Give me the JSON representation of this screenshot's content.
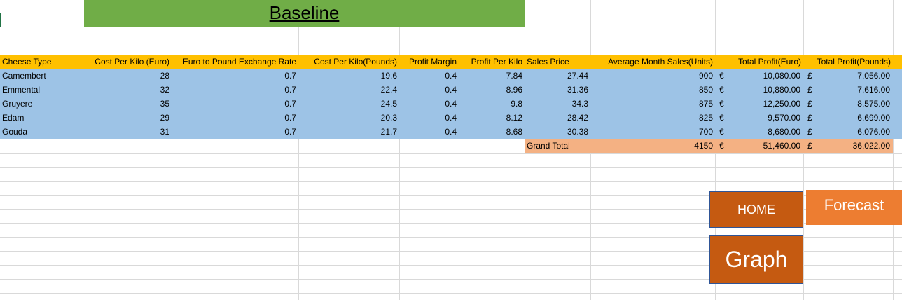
{
  "title": "Baseline",
  "headers": [
    "Cheese Type",
    "Cost Per Kilo (Euro)",
    "Euro to Pound Exchange Rate",
    "Cost Per Kilo(Pounds)",
    "Profit Margin",
    "Profit Per Kilo",
    "Sales Price",
    "Average Month Sales(Units)",
    "Total Profit(Euro)",
    "Total Profit(Pounds)"
  ],
  "rows": [
    {
      "cheese": "Camembert",
      "cost_euro": "28",
      "rate": "0.7",
      "cost_pounds": "19.6",
      "margin": "0.4",
      "profit_per_kilo": "7.84",
      "sales_price": "27.44",
      "avg_sales": "900",
      "euro_symbol": "€",
      "total_euro": "10,080.00",
      "pound_symbol": "£",
      "total_pounds": "7,056.00"
    },
    {
      "cheese": "Emmental",
      "cost_euro": "32",
      "rate": "0.7",
      "cost_pounds": "22.4",
      "margin": "0.4",
      "profit_per_kilo": "8.96",
      "sales_price": "31.36",
      "avg_sales": "850",
      "euro_symbol": "€",
      "total_euro": "10,880.00",
      "pound_symbol": "£",
      "total_pounds": "7,616.00"
    },
    {
      "cheese": "Gruyere",
      "cost_euro": "35",
      "rate": "0.7",
      "cost_pounds": "24.5",
      "margin": "0.4",
      "profit_per_kilo": "9.8",
      "sales_price": "34.3",
      "avg_sales": "875",
      "euro_symbol": "€",
      "total_euro": "12,250.00",
      "pound_symbol": "£",
      "total_pounds": "8,575.00"
    },
    {
      "cheese": "Edam",
      "cost_euro": "29",
      "rate": "0.7",
      "cost_pounds": "20.3",
      "margin": "0.4",
      "profit_per_kilo": "8.12",
      "sales_price": "28.42",
      "avg_sales": "825",
      "euro_symbol": "€",
      "total_euro": "9,570.00",
      "pound_symbol": "£",
      "total_pounds": "6,699.00"
    },
    {
      "cheese": "Gouda",
      "cost_euro": "31",
      "rate": "0.7",
      "cost_pounds": "21.7",
      "margin": "0.4",
      "profit_per_kilo": "8.68",
      "sales_price": "30.38",
      "avg_sales": "700",
      "euro_symbol": "€",
      "total_euro": "8,680.00",
      "pound_symbol": "£",
      "total_pounds": "6,076.00"
    }
  ],
  "grand_total": {
    "label": "Grand Total",
    "avg_sales": "4150",
    "euro_symbol": "€",
    "total_euro": "51,460.00",
    "pound_symbol": "£",
    "total_pounds": "36,022.00"
  },
  "buttons": {
    "home": "HOME",
    "forecast": "Forecast",
    "graph": "Graph"
  },
  "colors": {
    "title_bar": "#70ad47",
    "header_row": "#ffc000",
    "data_rows": "#9dc3e6",
    "grand_total": "#f4b183",
    "button_dark": "#c55a11",
    "button_light": "#ed7d31",
    "gridline": "#d9d9d9"
  }
}
